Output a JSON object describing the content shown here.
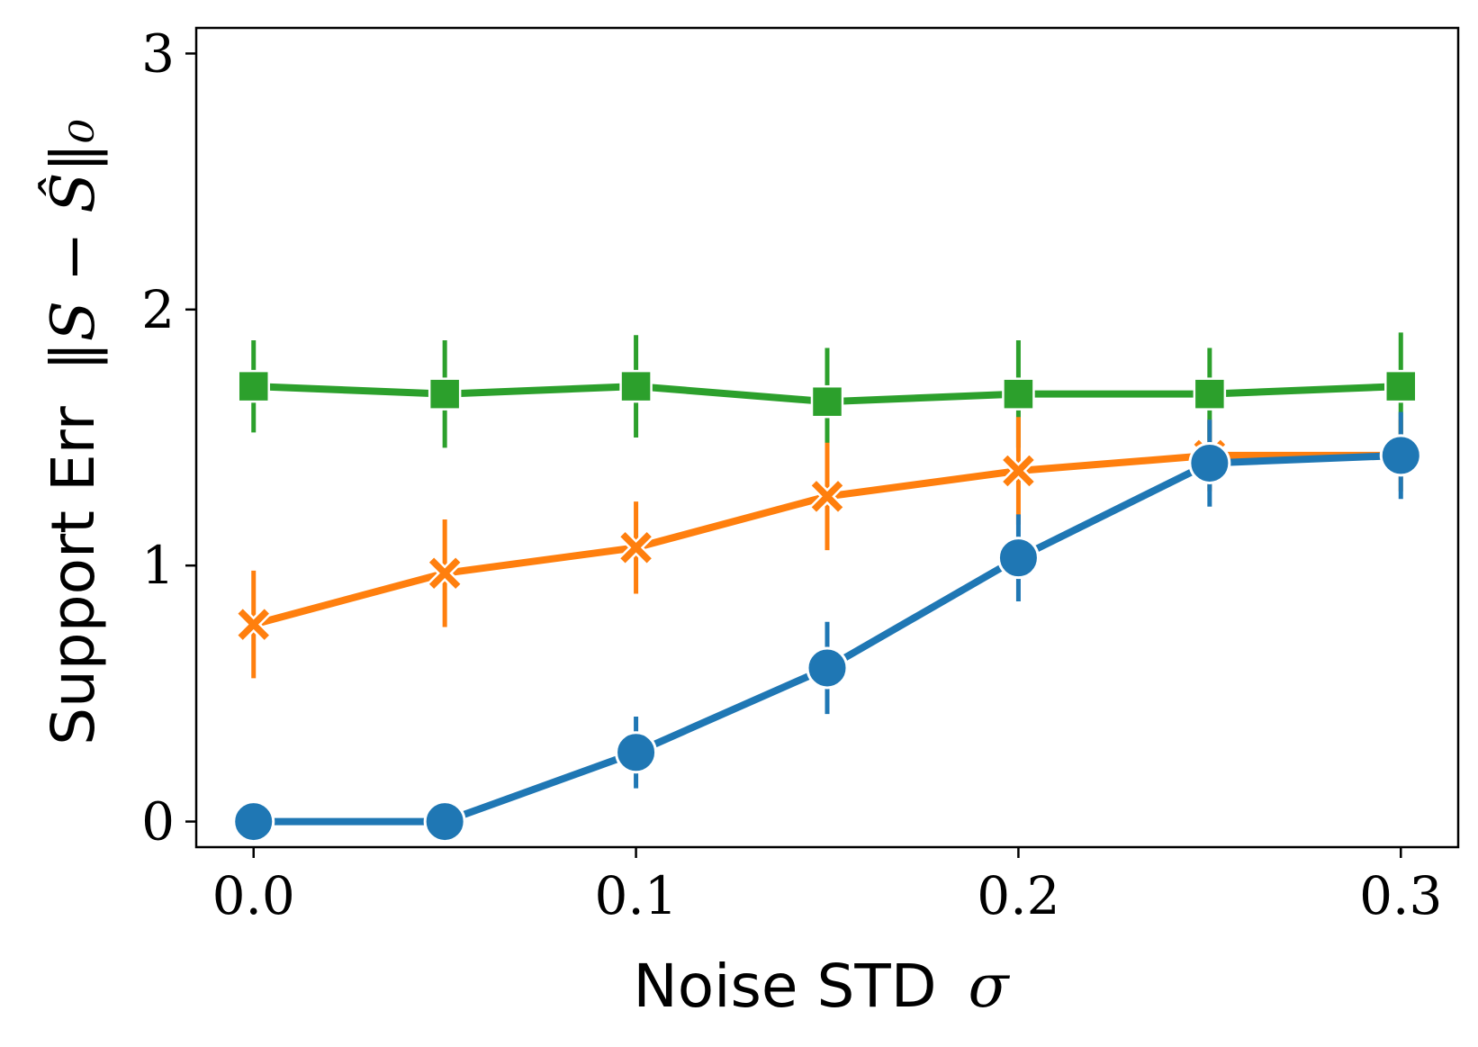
{
  "chart_data": {
    "type": "line",
    "title": "",
    "x": [
      0.0,
      0.05,
      0.1,
      0.15,
      0.2,
      0.25,
      0.3
    ],
    "xlim": [
      -0.015,
      0.315
    ],
    "ylim": [
      -0.1,
      3.1
    ],
    "xticks": [
      0.0,
      0.1,
      0.2,
      0.3
    ],
    "xtick_labels": [
      "0.0",
      "0.1",
      "0.2",
      "0.3"
    ],
    "yticks": [
      0,
      1,
      2,
      3
    ],
    "ytick_labels": [
      "0",
      "1",
      "2",
      "3"
    ],
    "xlabel": "Noise STD",
    "xlabel_symbol": "σ",
    "ylabel": "Support Err",
    "ylabel_symbol": "‖S − Ŝ‖₀",
    "grid": false,
    "series": [
      {
        "color": "#2ca02c",
        "marker": "square",
        "values": [
          1.7,
          1.67,
          1.7,
          1.64,
          1.67,
          1.67,
          1.7
        ],
        "err": [
          0.18,
          0.21,
          0.2,
          0.21,
          0.21,
          0.18,
          0.21
        ]
      },
      {
        "color": "#ff7f0e",
        "marker": "x",
        "values": [
          0.77,
          0.97,
          1.07,
          1.27,
          1.37,
          1.43,
          1.43
        ],
        "err": [
          0.21,
          0.21,
          0.18,
          0.21,
          0.21,
          0.14,
          0.14
        ]
      },
      {
        "color": "#1f77b4",
        "marker": "circle",
        "values": [
          0.0,
          0.0,
          0.27,
          0.6,
          1.03,
          1.4,
          1.43
        ],
        "err": [
          0.0,
          0.0,
          0.14,
          0.18,
          0.17,
          0.17,
          0.17
        ]
      }
    ]
  }
}
